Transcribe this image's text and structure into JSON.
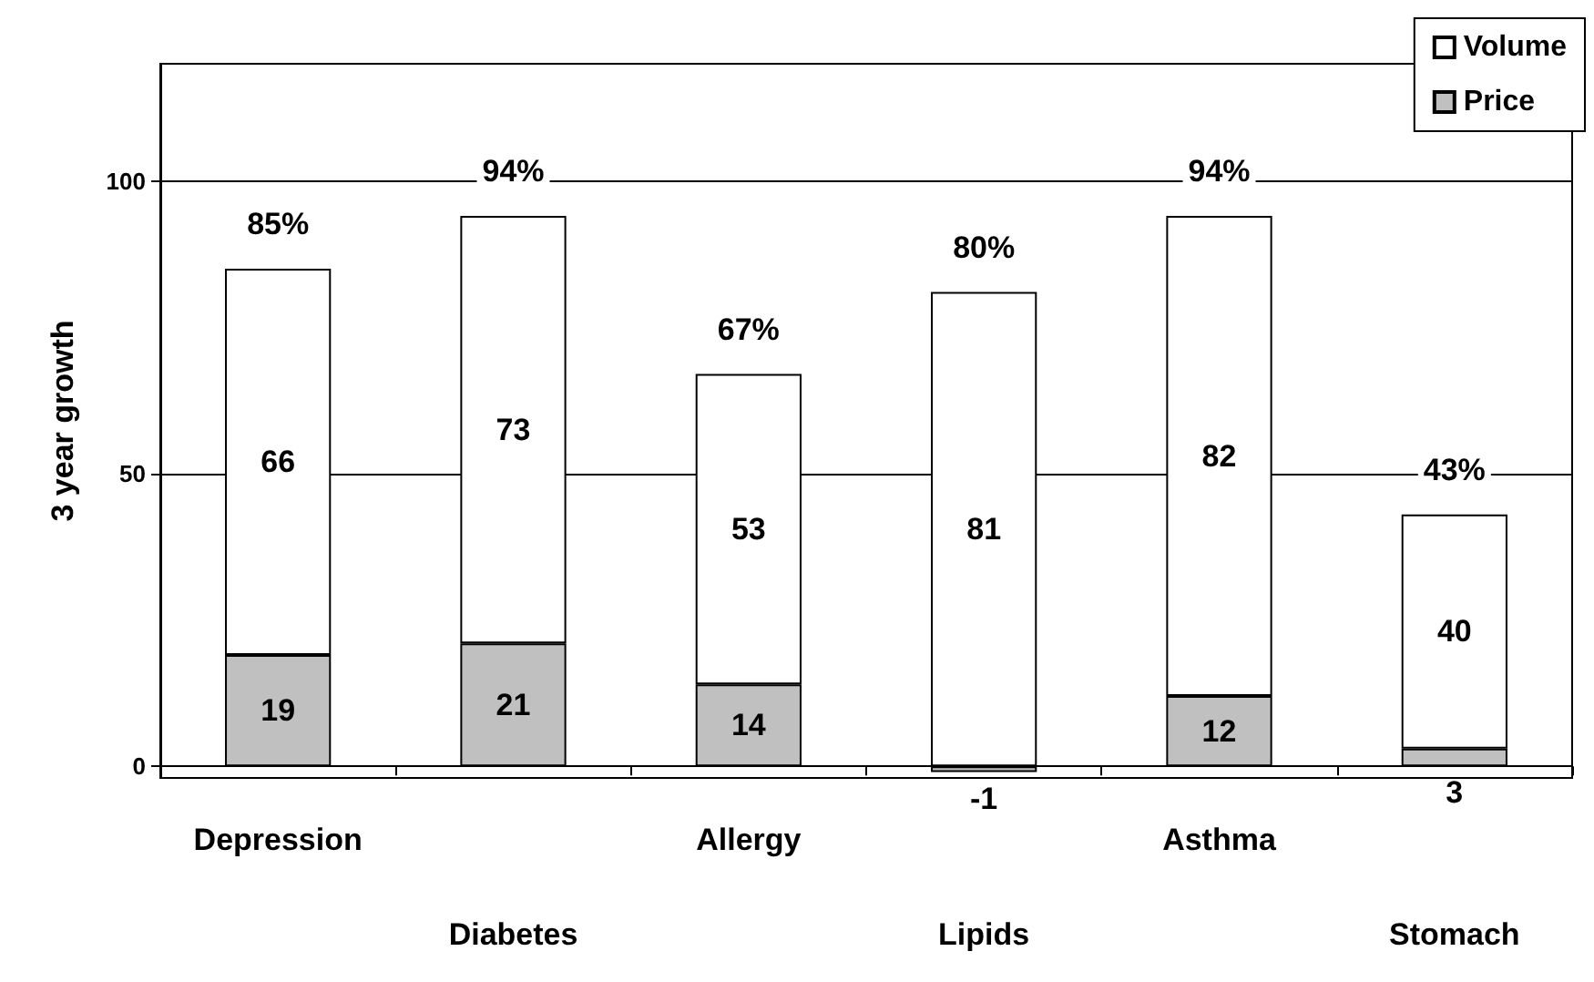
{
  "chart_data": {
    "type": "bar",
    "ylabel": "3 year growth",
    "categories": [
      "Depression",
      "Diabetes",
      "Allergy",
      "Lipids",
      "Asthma",
      "Stomach"
    ],
    "series": [
      {
        "name": "Price",
        "color": "#c0c0c0",
        "values": [
          19,
          21,
          14,
          -1,
          12,
          3
        ]
      },
      {
        "name": "Volume",
        "color": "#ffffff",
        "values": [
          66,
          73,
          53,
          81,
          82,
          40
        ]
      }
    ],
    "stacked": true,
    "ylim": [
      -2,
      120
    ],
    "yticks": [
      0,
      50,
      100
    ],
    "grid": "y",
    "legend": "top right",
    "data_labels": true,
    "totals": [
      "85%",
      "94%",
      "67%",
      "80%",
      "94%",
      "43%"
    ]
  }
}
